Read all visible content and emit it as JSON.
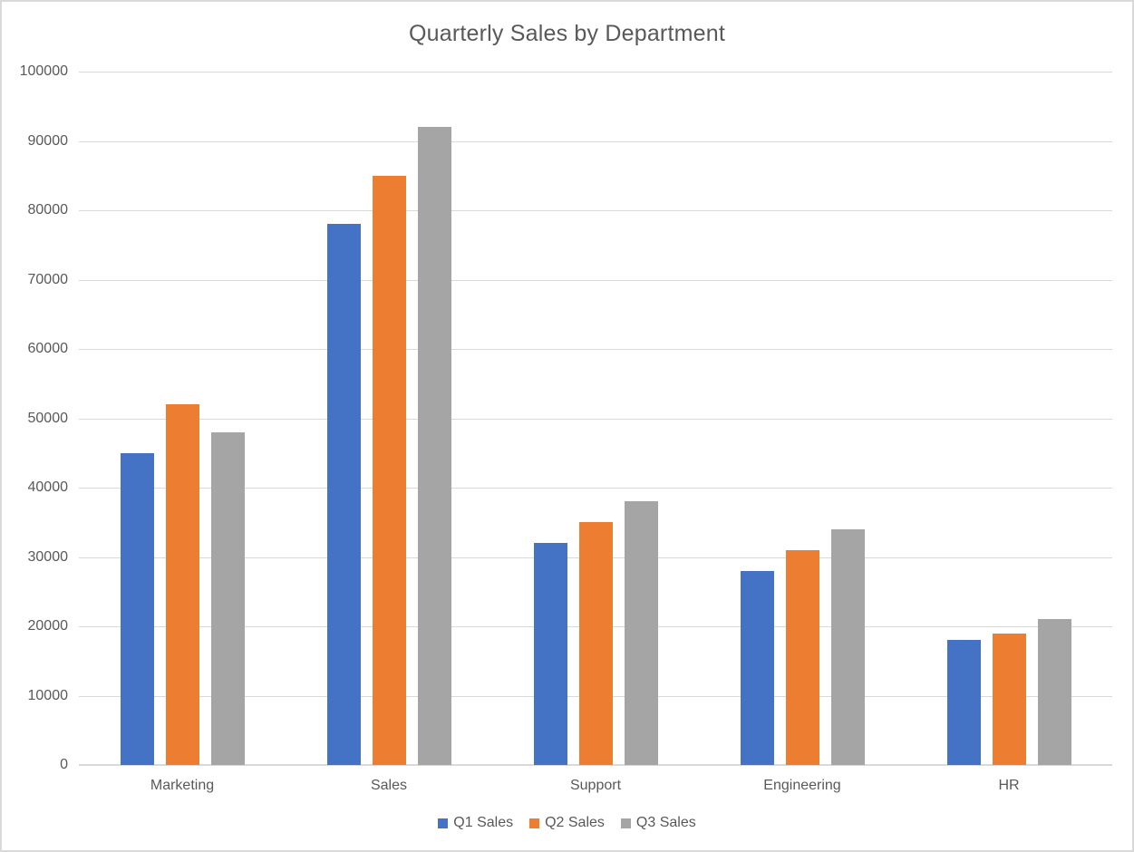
{
  "chart_data": {
    "type": "bar",
    "title": "Quarterly Sales by Department",
    "categories": [
      "Marketing",
      "Sales",
      "Support",
      "Engineering",
      "HR"
    ],
    "series": [
      {
        "name": "Q1 Sales",
        "color": "#4472C4",
        "values": [
          45000,
          78000,
          32000,
          28000,
          18000
        ]
      },
      {
        "name": "Q2 Sales",
        "color": "#ED7D31",
        "values": [
          52000,
          85000,
          35000,
          31000,
          19000
        ]
      },
      {
        "name": "Q3 Sales",
        "color": "#A5A5A5",
        "values": [
          48000,
          92000,
          38000,
          34000,
          21000
        ]
      }
    ],
    "xlabel": "",
    "ylabel": "",
    "ylim": [
      0,
      100000
    ],
    "ytick_step": 10000,
    "yticks": [
      "0",
      "10000",
      "20000",
      "30000",
      "40000",
      "50000",
      "60000",
      "70000",
      "80000",
      "90000",
      "100000"
    ],
    "grid": true,
    "legend_position": "bottom"
  },
  "colors": {
    "text": "#595959",
    "gridline": "#D9D9D9",
    "axis_line": "#D9D9D9",
    "frame_border": "#D9D9D9",
    "background": "#FFFFFF"
  }
}
